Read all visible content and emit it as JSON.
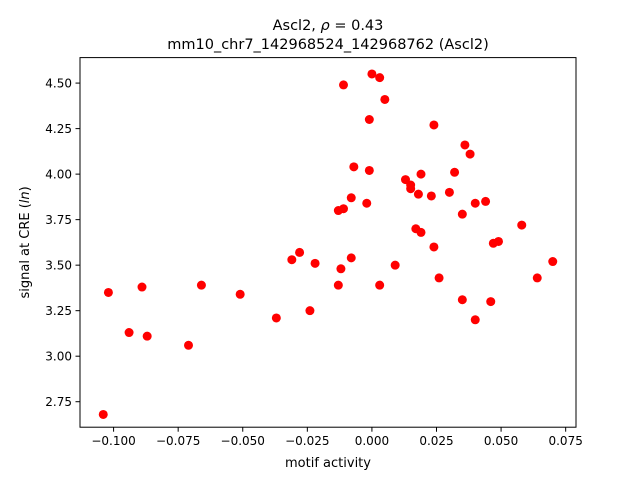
{
  "chart_data": {
    "type": "scatter",
    "title_line1": "Ascl2, ",
    "title_rho": "ρ",
    "title_eq": " = 0.43",
    "title_line2": "mm10_chr7_142968524_142968762 (Ascl2)",
    "xlabel": "motif activity",
    "ylabel_prefix": "signal at CRE (",
    "ylabel_italic": "ln",
    "ylabel_suffix": ")",
    "xlim": [
      -0.113,
      0.079
    ],
    "ylim": [
      2.61,
      4.64
    ],
    "xticks": [
      -0.1,
      -0.075,
      -0.05,
      -0.025,
      0.0,
      0.025,
      0.05,
      0.075
    ],
    "xtick_labels": [
      "−0.100",
      "−0.075",
      "−0.050",
      "−0.025",
      "0.000",
      "0.025",
      "0.050",
      "0.075"
    ],
    "yticks": [
      2.75,
      3.0,
      3.25,
      3.5,
      3.75,
      4.0,
      4.25,
      4.5
    ],
    "ytick_labels": [
      "2.75",
      "3.00",
      "3.25",
      "3.50",
      "3.75",
      "4.00",
      "4.25",
      "4.50"
    ],
    "marker_color": "#ff0000",
    "grid": false,
    "points": [
      {
        "x": -0.104,
        "y": 2.68
      },
      {
        "x": -0.102,
        "y": 3.35
      },
      {
        "x": -0.094,
        "y": 3.13
      },
      {
        "x": -0.089,
        "y": 3.38
      },
      {
        "x": -0.087,
        "y": 3.11
      },
      {
        "x": -0.071,
        "y": 3.06
      },
      {
        "x": -0.066,
        "y": 3.39
      },
      {
        "x": -0.051,
        "y": 3.34
      },
      {
        "x": -0.037,
        "y": 3.21
      },
      {
        "x": -0.031,
        "y": 3.53
      },
      {
        "x": -0.028,
        "y": 3.57
      },
      {
        "x": -0.024,
        "y": 3.25
      },
      {
        "x": -0.022,
        "y": 3.51
      },
      {
        "x": -0.013,
        "y": 3.39
      },
      {
        "x": -0.013,
        "y": 3.8
      },
      {
        "x": -0.012,
        "y": 3.48
      },
      {
        "x": -0.011,
        "y": 4.49
      },
      {
        "x": -0.011,
        "y": 3.81
      },
      {
        "x": -0.008,
        "y": 3.87
      },
      {
        "x": -0.008,
        "y": 3.54
      },
      {
        "x": -0.007,
        "y": 4.04
      },
      {
        "x": -0.002,
        "y": 3.84
      },
      {
        "x": -0.001,
        "y": 4.3
      },
      {
        "x": -0.001,
        "y": 4.02
      },
      {
        "x": 0.0,
        "y": 4.55
      },
      {
        "x": 0.003,
        "y": 3.39
      },
      {
        "x": 0.003,
        "y": 4.53
      },
      {
        "x": 0.005,
        "y": 4.41
      },
      {
        "x": 0.009,
        "y": 3.5
      },
      {
        "x": 0.013,
        "y": 3.97
      },
      {
        "x": 0.015,
        "y": 3.94
      },
      {
        "x": 0.015,
        "y": 3.92
      },
      {
        "x": 0.017,
        "y": 3.7
      },
      {
        "x": 0.018,
        "y": 3.89
      },
      {
        "x": 0.019,
        "y": 3.68
      },
      {
        "x": 0.019,
        "y": 4.0
      },
      {
        "x": 0.023,
        "y": 3.88
      },
      {
        "x": 0.024,
        "y": 3.6
      },
      {
        "x": 0.024,
        "y": 4.27
      },
      {
        "x": 0.026,
        "y": 3.43
      },
      {
        "x": 0.03,
        "y": 3.9
      },
      {
        "x": 0.032,
        "y": 4.01
      },
      {
        "x": 0.035,
        "y": 3.31
      },
      {
        "x": 0.035,
        "y": 3.78
      },
      {
        "x": 0.036,
        "y": 4.16
      },
      {
        "x": 0.038,
        "y": 4.11
      },
      {
        "x": 0.04,
        "y": 3.84
      },
      {
        "x": 0.04,
        "y": 3.2
      },
      {
        "x": 0.044,
        "y": 3.85
      },
      {
        "x": 0.046,
        "y": 3.3
      },
      {
        "x": 0.047,
        "y": 3.62
      },
      {
        "x": 0.049,
        "y": 3.63
      },
      {
        "x": 0.058,
        "y": 3.72
      },
      {
        "x": 0.064,
        "y": 3.43
      },
      {
        "x": 0.07,
        "y": 3.52
      }
    ]
  }
}
